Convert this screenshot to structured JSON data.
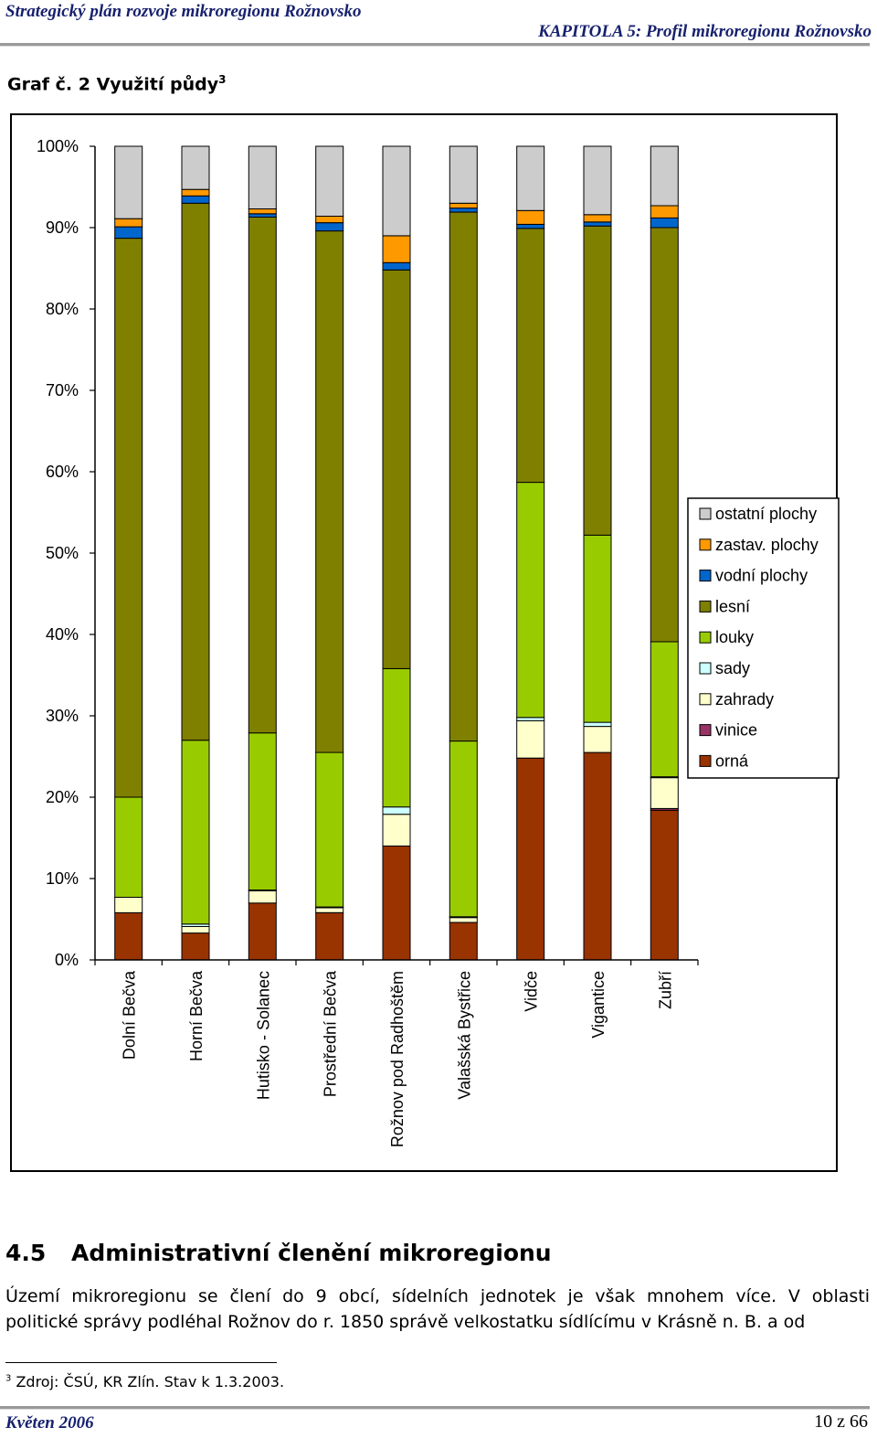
{
  "header": {
    "left": "Strategický plán rozvoje mikroregionu Rožnovsko",
    "right": "KAPITOLA 5: Profil mikroregionu Rožnovsko"
  },
  "graph_title": "Graf č. 2  Využití půdy",
  "graph_title_ref": "3",
  "chart_data": {
    "type": "bar",
    "stacked": "percent",
    "categories": [
      "Dolní Bečva",
      "Horní Bečva",
      "Hutisko - Solanec",
      "Prostřední Bečva",
      "Rožnov pod Radhoštěm",
      "Valašská Bystřice",
      "Vidče",
      "Vigantice",
      "Zubří"
    ],
    "series": [
      {
        "name": "orná",
        "color": "#993300",
        "values": [
          5.8,
          3.3,
          7.0,
          5.8,
          14.0,
          4.6,
          24.8,
          25.5,
          18.4
        ]
      },
      {
        "name": "vinice",
        "color": "#993366",
        "values": [
          0.0,
          0.0,
          0.0,
          0.0,
          0.0,
          0.0,
          0.0,
          0.0,
          0.2
        ]
      },
      {
        "name": "zahrady",
        "color": "#ffffcc",
        "values": [
          1.9,
          0.8,
          1.5,
          0.6,
          3.9,
          0.6,
          4.6,
          3.2,
          3.8
        ]
      },
      {
        "name": "sady",
        "color": "#ccffff",
        "values": [
          0.0,
          0.3,
          0.1,
          0.1,
          0.9,
          0.1,
          0.4,
          0.5,
          0.1
        ]
      },
      {
        "name": "louky",
        "color": "#99cc00",
        "values": [
          12.3,
          22.6,
          19.3,
          19.0,
          17.0,
          21.6,
          28.9,
          23.0,
          16.6
        ]
      },
      {
        "name": "lesní",
        "color": "#808000",
        "values": [
          68.7,
          66.0,
          63.4,
          64.1,
          49.0,
          65.0,
          31.2,
          38.0,
          50.9
        ]
      },
      {
        "name": "vodní plochy",
        "color": "#0066cc",
        "values": [
          1.4,
          0.9,
          0.4,
          1.0,
          0.9,
          0.5,
          0.5,
          0.5,
          1.2
        ]
      },
      {
        "name": "zastav. plochy",
        "color": "#ff9900",
        "values": [
          1.0,
          0.8,
          0.6,
          0.8,
          3.3,
          0.6,
          1.7,
          0.9,
          1.5
        ]
      },
      {
        "name": "ostatní plochy",
        "color": "#cccccc",
        "values": [
          8.9,
          5.3,
          7.7,
          8.6,
          11.0,
          7.0,
          7.9,
          8.4,
          7.3
        ]
      }
    ],
    "yticks": [
      "0%",
      "10%",
      "20%",
      "30%",
      "40%",
      "50%",
      "60%",
      "70%",
      "80%",
      "90%",
      "100%"
    ],
    "ylim": [
      0,
      100
    ],
    "legend_position": "right",
    "grid": false
  },
  "section": {
    "number": "4.5",
    "title": "Administrativní členění mikroregionu"
  },
  "paragraph": {
    "line1": "Území mikroregionu se člení do 9 obcí, sídelních jednotek je však mnohem více. V oblasti",
    "line2": "politické správy podléhal Rožnov do r. 1850 správě velkostatku sídlícímu v Krásně n. B. a od"
  },
  "footnote": {
    "ref": "3",
    "text": " Zdroj: ČSÚ, KR Zlín. Stav k 1.3.2003."
  },
  "footer": {
    "left": "Květen 2006",
    "right": "10 z 66"
  }
}
